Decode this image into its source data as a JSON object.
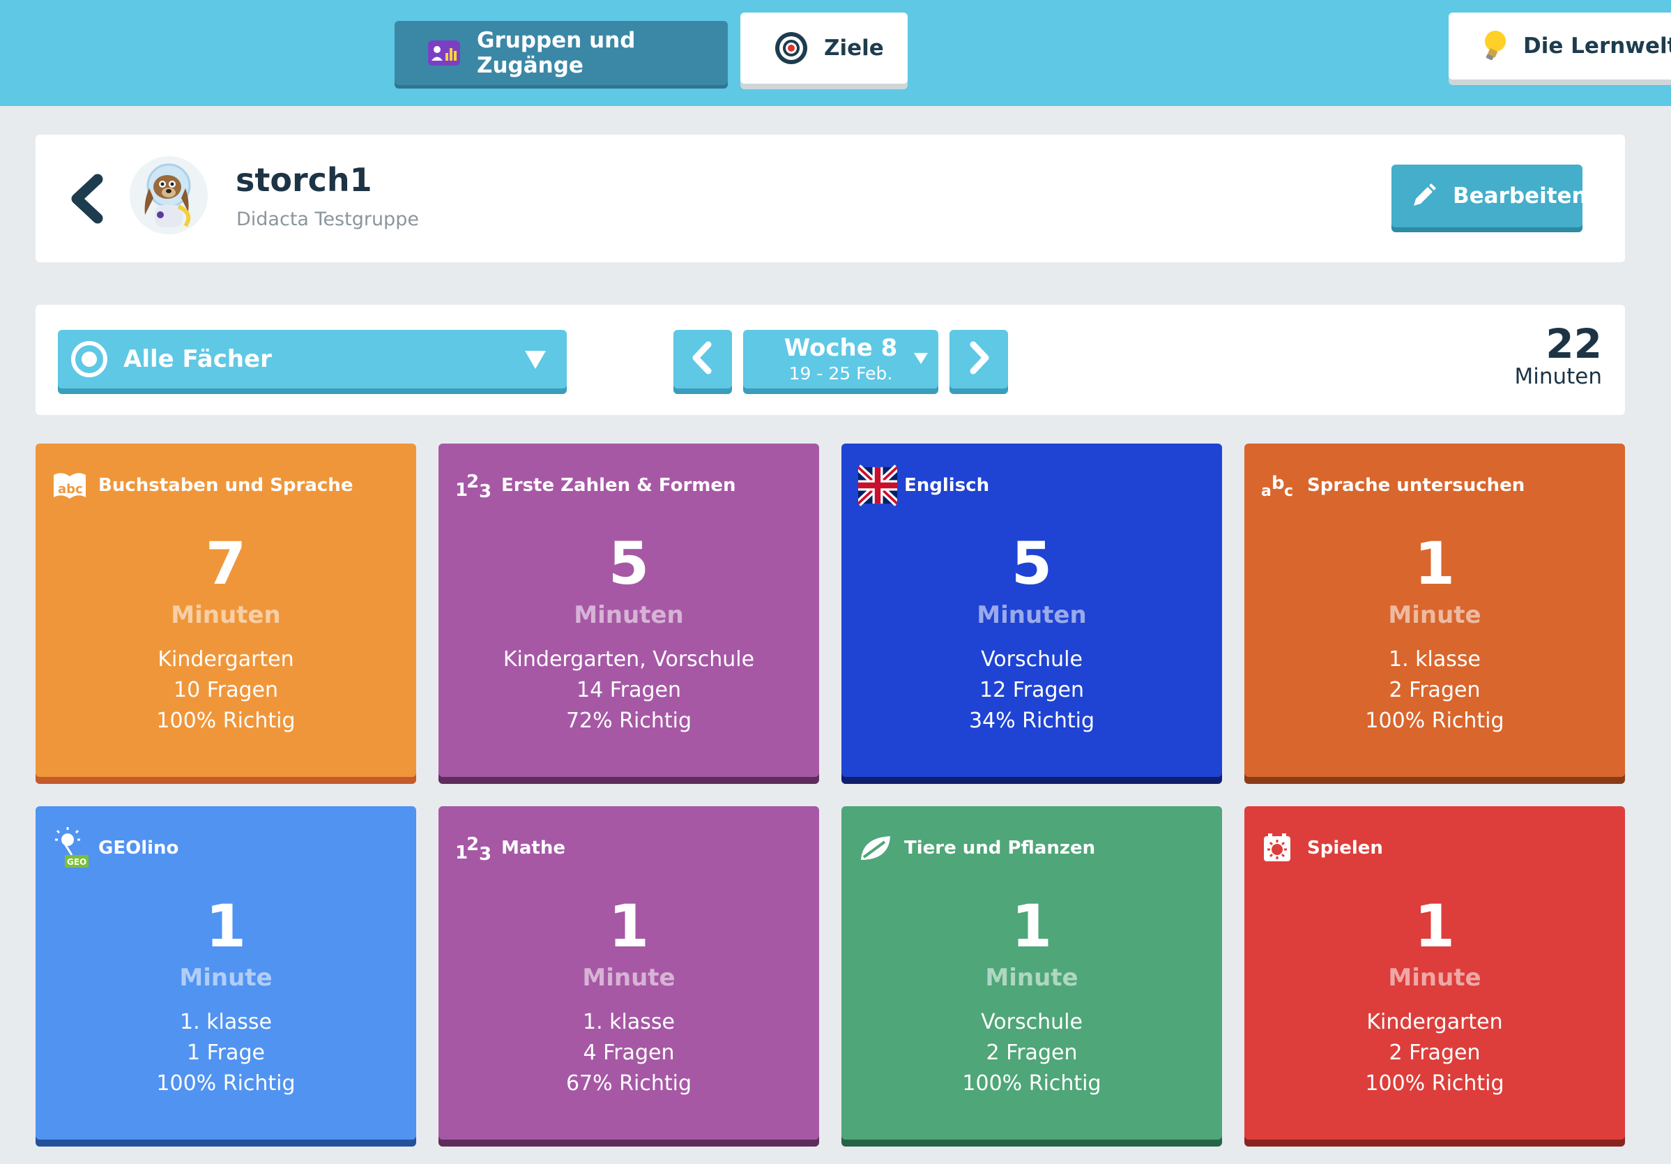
{
  "nav": {
    "groups_label": "Gruppen und Zugänge",
    "ziele_label": "Ziele",
    "lernwelt_label": "Die Lernwelt be"
  },
  "profile": {
    "username": "storch1",
    "group": "Didacta Testgruppe",
    "edit_label": "Bearbeiten"
  },
  "filter": {
    "subject_label": "Alle Fächer",
    "week_title": "Woche 8",
    "week_range": "19 - 25 Feb.",
    "total_minutes": "22",
    "total_label": "Minuten"
  },
  "colors": {
    "topbar": "#5ec8e5",
    "accent": "#44aecb"
  },
  "cards": [
    {
      "title": "Buchstaben und Sprache",
      "icon": "abc-book-icon",
      "minutes": "7",
      "unit": "Minuten",
      "level": "Kindergarten",
      "questions": "10 Fragen",
      "correct": "100% Richtig",
      "color": "#f0963a",
      "shade": "#c45b2b"
    },
    {
      "title": "Erste Zahlen & Formen",
      "icon": "numbers-123-icon",
      "minutes": "5",
      "unit": "Minuten",
      "level": "Kindergarten, Vorschule",
      "questions": "14 Fragen",
      "correct": "72% Richtig",
      "color": "#a658a5",
      "shade": "#5e2d5c"
    },
    {
      "title": "Englisch",
      "icon": "uk-flag-icon",
      "minutes": "5",
      "unit": "Minuten",
      "level": "Vorschule",
      "questions": "12 Fragen",
      "correct": "34% Richtig",
      "color": "#1f43d3",
      "shade": "#0f1f6e"
    },
    {
      "title": "Sprache untersuchen",
      "icon": "abc-letters-icon",
      "minutes": "1",
      "unit": "Minute",
      "level": "1. klasse",
      "questions": "2 Fragen",
      "correct": "100% Richtig",
      "color": "#d9662d",
      "shade": "#8a3c19"
    },
    {
      "title": "GEOlino",
      "icon": "geolino-logo-icon",
      "minutes": "1",
      "unit": "Minute",
      "level": "1. klasse",
      "questions": "1 Frage",
      "correct": "100% Richtig",
      "color": "#5193f1",
      "shade": "#24519c"
    },
    {
      "title": "Mathe",
      "icon": "numbers-123-icon",
      "minutes": "1",
      "unit": "Minute",
      "level": "1. klasse",
      "questions": "4 Fragen",
      "correct": "67% Richtig",
      "color": "#a658a5",
      "shade": "#5e2d5c"
    },
    {
      "title": "Tiere und Pflanzen",
      "icon": "leaf-icon",
      "minutes": "1",
      "unit": "Minute",
      "level": "Vorschule",
      "questions": "2 Fragen",
      "correct": "100% Richtig",
      "color": "#4fa678",
      "shade": "#276447"
    },
    {
      "title": "Spielen",
      "icon": "game-icon",
      "minutes": "1",
      "unit": "Minute",
      "level": "Kindergarten",
      "questions": "2 Fragen",
      "correct": "100% Richtig",
      "color": "#dd3e3b",
      "shade": "#8a2421"
    }
  ]
}
